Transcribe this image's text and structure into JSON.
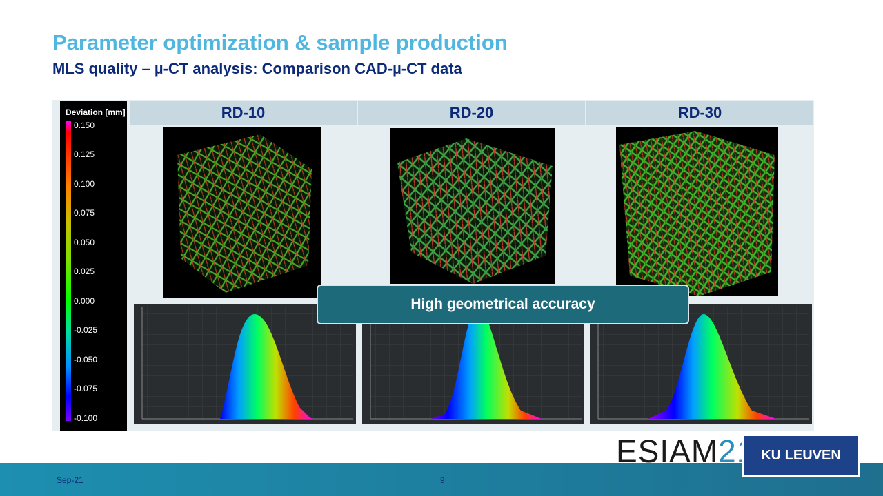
{
  "slide": {
    "title": "Parameter optimization & sample production",
    "subtitle": "MLS quality – µ-CT analysis: Comparison CAD-µ-CT data",
    "date": "Sep-21",
    "page": "9"
  },
  "legend": {
    "title": "Deviation [mm]",
    "ticks": [
      "0.150",
      "0.125",
      "0.100",
      "0.075",
      "0.050",
      "0.025",
      "0.000",
      "-0.025",
      "-0.050",
      "-0.075",
      "-0.100"
    ]
  },
  "columns": [
    {
      "label": "RD-10"
    },
    {
      "label": "RD-20"
    },
    {
      "label": "RD-30"
    }
  ],
  "callout": {
    "text": "High geometrical accuracy"
  },
  "logos": {
    "esiam_letters": "ESIAM",
    "esiam_number": "21",
    "kuleuven": "KU LEUVEN"
  },
  "colors": {
    "title": "#4fb6e0",
    "subtitle": "#0d2a78",
    "callout": "#1c6a7a",
    "footer": "#1d8fb0",
    "kuleuven": "#1d428a"
  }
}
